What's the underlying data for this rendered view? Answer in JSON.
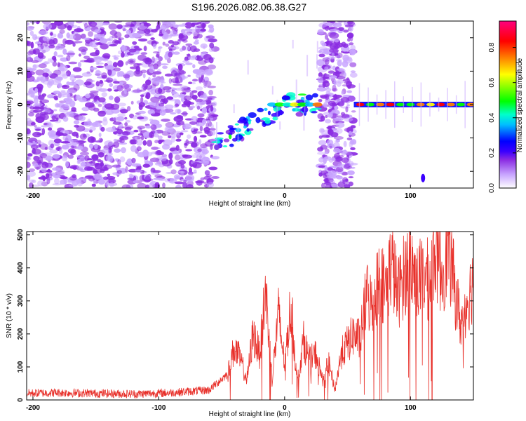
{
  "figure_title": "S196.2026.082.06.38.G27",
  "chart_data": [
    {
      "type": "heatmap",
      "xlabel": "Height of straight line (km)",
      "ylabel": "Frequency (Hz)",
      "xlim": [
        -205,
        150
      ],
      "ylim": [
        -25,
        25
      ],
      "xticks": [
        -200,
        -100,
        0,
        100
      ],
      "yticks": [
        -20,
        -10,
        0,
        10,
        20
      ],
      "colorbar": {
        "label": "Normalized spectral amplitude",
        "range": [
          0.0,
          0.95
        ],
        "ticks": [
          0.0,
          0.2,
          0.4,
          0.6,
          0.8
        ],
        "tick_labels": [
          "0.0",
          "0.2",
          "0.4",
          "0.6",
          "0.8"
        ],
        "colors": [
          "#ffffff",
          "#c9a6ff",
          "#8a2be2",
          "#3a00ff",
          "#0000ff",
          "#00bfff",
          "#00ffcc",
          "#00ff00",
          "#ffff00",
          "#ff8000",
          "#ff0000",
          "#ff007f"
        ]
      },
      "regions": [
        {
          "x_from": -205,
          "x_to": -55,
          "description_value": 0.15
        },
        {
          "x_from": -55,
          "x_to": 28,
          "description_value": 0.3
        },
        {
          "x_from": 28,
          "x_to": 55,
          "description_value": 0.12
        },
        {
          "x_from": 55,
          "x_to": 150,
          "description_value": 0.85
        }
      ]
    },
    {
      "type": "line",
      "xlabel": "Height of straight line (km)",
      "ylabel": "SNR (10 * v/v)",
      "xlim": [
        -205,
        150
      ],
      "ylim": [
        0,
        510
      ],
      "xticks": [
        -200,
        -100,
        0,
        100
      ],
      "yticks": [
        0,
        100,
        200,
        300,
        400,
        500
      ],
      "series": [
        {
          "name": "SNR",
          "color": "#e8302a",
          "x": [
            -205,
            -180,
            -150,
            -120,
            -90,
            -60,
            -45,
            -40,
            -35,
            -30,
            -25,
            -20,
            -15,
            -10,
            -5,
            0,
            5,
            10,
            15,
            20,
            25,
            30,
            35,
            40,
            45,
            50,
            55,
            60,
            65,
            70,
            75,
            80,
            85,
            90,
            95,
            100,
            105,
            110,
            115,
            120,
            125,
            130,
            135,
            140,
            145,
            150
          ],
          "y": [
            20,
            22,
            20,
            18,
            22,
            30,
            80,
            160,
            120,
            60,
            200,
            140,
            330,
            60,
            260,
            110,
            290,
            50,
            180,
            120,
            140,
            60,
            110,
            30,
            140,
            170,
            200,
            180,
            320,
            280,
            380,
            330,
            420,
            320,
            380,
            420,
            350,
            380,
            360,
            460,
            380,
            470,
            340,
            230,
            300,
            360
          ]
        }
      ]
    }
  ]
}
